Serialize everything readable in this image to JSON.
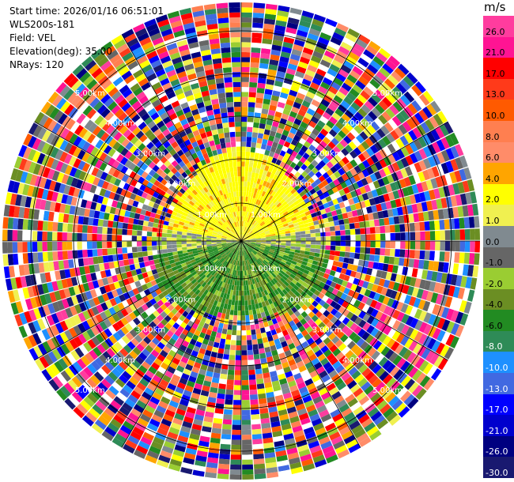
{
  "header": {
    "start_time": "Start time: 2026/01/16 06:51:01",
    "station": "WLS200s-181",
    "field": "Field: VEL",
    "elevation": "Elevation(deg): 35.00",
    "nrays": "NRays: 120"
  },
  "colorbar": {
    "unit": "m/s",
    "labels": [
      "26.0",
      "21.0",
      "17.0",
      "13.0",
      "10.0",
      "8.0",
      "6.0",
      "4.0",
      "2.0",
      "1.0",
      "0.0",
      "-1.0",
      "-2.0",
      "-4.0",
      "-6.0",
      "-8.0",
      "-10.0",
      "-13.0",
      "-17.0",
      "-21.0",
      "-26.0",
      "-30.0"
    ],
    "colors": [
      "#ff3c9e",
      "#ff1493",
      "#ff0000",
      "#ff3a1a",
      "#ff5a00",
      "#ff7f50",
      "#ff8c69",
      "#ffa500",
      "#ffff00",
      "#f0f050",
      "#808a90",
      "#666666",
      "#9acd32",
      "#6b8e23",
      "#228b22",
      "#2e8b57",
      "#1e90ff",
      "#4169e1",
      "#0000ff",
      "#0000cd",
      "#000080",
      "#191970"
    ]
  },
  "rings": {
    "labels": [
      "1.00km",
      "2.00km",
      "3.00km",
      "4.00km",
      "5.00km"
    ]
  }
}
